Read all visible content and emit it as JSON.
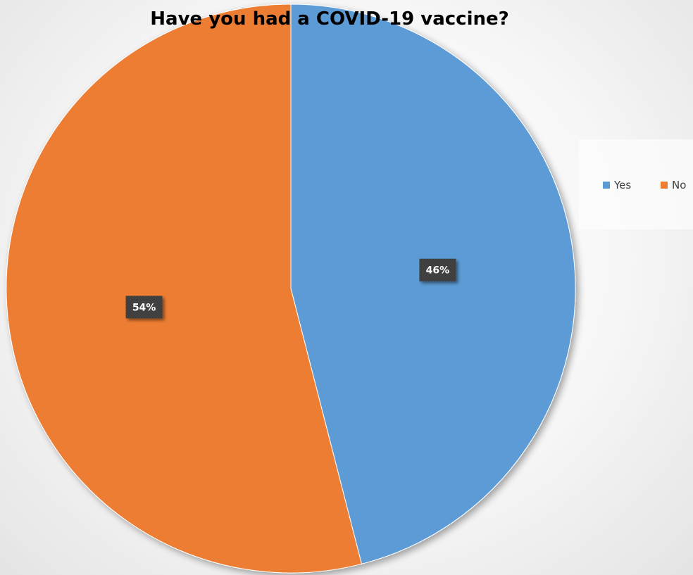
{
  "chart_data": {
    "type": "pie",
    "title": "Have you had a COVID-19 vaccine?",
    "categories": [
      "Yes",
      "No"
    ],
    "values": [
      46,
      54
    ],
    "data_labels": [
      "46%",
      "54%"
    ],
    "colors": [
      "#5b9bd5",
      "#ed7d31"
    ],
    "legend": {
      "placement": "right",
      "entries": [
        "Yes",
        "No"
      ]
    }
  }
}
